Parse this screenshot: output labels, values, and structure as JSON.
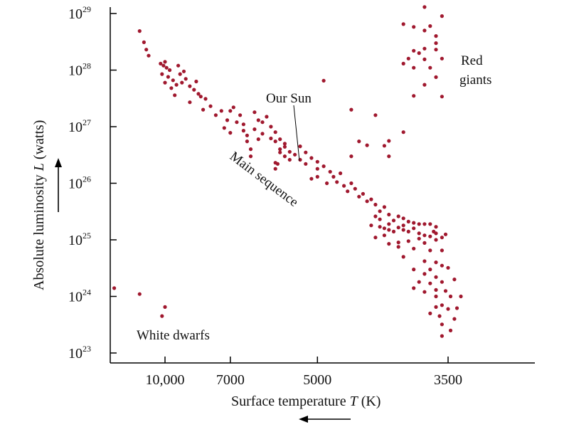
{
  "chart_data": {
    "type": "scatter",
    "title": "",
    "xlabel_prefix": "Surface temperature ",
    "xlabel_var": "T",
    "xlabel_suffix": " (K)",
    "ylabel_prefix": "Absolute luminosity ",
    "ylabel_var": "L",
    "ylabel_suffix": " (watts)",
    "x_scale": "reciprocal",
    "x_direction": "decreasing to the right",
    "y_scale": "log",
    "x_ticks": [
      {
        "value": 10000,
        "label": "10,000"
      },
      {
        "value": 7000,
        "label": "7000"
      },
      {
        "value": 5000,
        "label": "5000"
      },
      {
        "value": 3500,
        "label": "3500"
      }
    ],
    "y_ticks": [
      {
        "exp": 29,
        "base": "10",
        "sup": "29"
      },
      {
        "exp": 28,
        "base": "10",
        "sup": "28"
      },
      {
        "exp": 27,
        "base": "10",
        "sup": "27"
      },
      {
        "exp": 26,
        "base": "10",
        "sup": "26"
      },
      {
        "exp": 25,
        "base": "10",
        "sup": "25"
      },
      {
        "exp": 24,
        "base": "10",
        "sup": "24"
      },
      {
        "exp": 23,
        "base": "10",
        "sup": "23"
      }
    ],
    "ylim": [
      "1e23",
      "1e29"
    ],
    "grid": false,
    "legend": "none",
    "point_color": "#a0182e",
    "annotations": {
      "sun": "Our Sun",
      "main_sequence": "Main sequence",
      "red_giants_1": "Red",
      "red_giants_2": "giants",
      "white_dwarfs": "White dwarfs"
    },
    "points": [
      [
        12000,
        4.9e+28
      ],
      [
        11600,
        3.1e+28
      ],
      [
        11400,
        2.3e+28
      ],
      [
        11200,
        1.8e+28
      ],
      [
        10300,
        1.3e+28
      ],
      [
        10100,
        1.2e+28
      ],
      [
        9900,
        1.1e+28
      ],
      [
        10000,
        1.4e+28
      ],
      [
        9700,
        1e+28
      ],
      [
        10200,
        8.5e+27
      ],
      [
        9800,
        7.6e+27
      ],
      [
        9500,
        6.6e+27
      ],
      [
        9300,
        5.5e+27
      ],
      [
        9000,
        6e+27
      ],
      [
        9600,
        4.8e+27
      ],
      [
        10000,
        6e+27
      ],
      [
        9200,
        1.2e+28
      ],
      [
        9100,
        8.5e+27
      ],
      [
        8900,
        9.5e+27
      ],
      [
        8800,
        7e+27
      ],
      [
        9400,
        3.6e+27
      ],
      [
        8600,
        5.2e+27
      ],
      [
        8400,
        4.5e+27
      ],
      [
        8200,
        3.8e+27
      ],
      [
        8600,
        2.7e+27
      ],
      [
        8300,
        6.3e+27
      ],
      [
        8100,
        3.4e+27
      ],
      [
        7900,
        3.1e+27
      ],
      [
        7700,
        2.3e+27
      ],
      [
        8000,
        2e+27
      ],
      [
        7500,
        1.6e+27
      ],
      [
        7300,
        1.9e+27
      ],
      [
        7100,
        1.3e+27
      ],
      [
        7000,
        1.9e+27
      ],
      [
        6900,
        2.2e+27
      ],
      [
        6800,
        1.2e+27
      ],
      [
        7200,
        9.5e+26
      ],
      [
        6700,
        1.6e+27
      ],
      [
        6600,
        1.1e+27
      ],
      [
        7000,
        7.8e+26
      ],
      [
        6600,
        8.5e+26
      ],
      [
        6500,
        7e+26
      ],
      [
        6300,
        1.8e+27
      ],
      [
        6200,
        1.3e+27
      ],
      [
        6100,
        1.2e+27
      ],
      [
        6000,
        1.5e+27
      ],
      [
        6300,
        9e+26
      ],
      [
        6100,
        7.5e+26
      ],
      [
        5900,
        1e+27
      ],
      [
        5800,
        8e+26
      ],
      [
        6200,
        6e+26
      ],
      [
        5900,
        6.2e+26
      ],
      [
        5800,
        5.5e+26
      ],
      [
        5700,
        6e+26
      ],
      [
        5600,
        5e+26
      ],
      [
        5600,
        4.4e+26
      ],
      [
        5700,
        4e+26
      ],
      [
        5500,
        3.6e+26
      ],
      [
        5600,
        3e+26
      ],
      [
        5400,
        3.2e+26
      ],
      [
        5500,
        2.6e+26
      ],
      [
        5300,
        4.5e+26
      ],
      [
        5200,
        3.5e+26
      ],
      [
        5300,
        2.6e+26
      ],
      [
        5200,
        2.2e+26
      ],
      [
        5100,
        2.8e+26
      ],
      [
        5000,
        2.4e+26
      ],
      [
        5000,
        1.8e+26
      ],
      [
        4900,
        2e+26
      ],
      [
        4800,
        1.6e+26
      ],
      [
        5800,
        1.8e+26
      ],
      [
        5750,
        2.2e+26
      ],
      [
        5700,
        3.5e+26
      ],
      [
        6400,
        4e+26
      ],
      [
        6400,
        3e+26
      ],
      [
        6500,
        5.5e+26
      ],
      [
        5100,
        1.2e+26
      ],
      [
        5000,
        1.3e+26
      ],
      [
        4850,
        1e+26
      ],
      [
        4750,
        1.3e+26
      ],
      [
        4700,
        1.05e+26
      ],
      [
        4650,
        1.5e+26
      ],
      [
        4600,
        9e+25
      ],
      [
        4550,
        7.2e+25
      ],
      [
        4500,
        1e+26
      ],
      [
        4450,
        8e+25
      ],
      [
        4400,
        5.8e+25
      ],
      [
        4350,
        6.5e+25
      ],
      [
        4300,
        4.8e+25
      ],
      [
        4250,
        5.2e+25
      ],
      [
        4200,
        4.2e+25
      ],
      [
        4150,
        3.2e+25
      ],
      [
        4100,
        3.8e+25
      ],
      [
        4200,
        2.6e+25
      ],
      [
        4150,
        2.3e+25
      ],
      [
        4050,
        2.8e+25
      ],
      [
        4000,
        2.2e+25
      ],
      [
        3950,
        2.6e+25
      ],
      [
        3900,
        2.4e+25
      ],
      [
        3850,
        2.1e+25
      ],
      [
        3800,
        2e+25
      ],
      [
        3750,
        1.9e+25
      ],
      [
        3700,
        1.9e+25
      ],
      [
        3650,
        1.9e+25
      ],
      [
        3600,
        1.7e+25
      ],
      [
        3800,
        1.6e+25
      ],
      [
        3900,
        1.5e+25
      ],
      [
        4000,
        1.4e+25
      ],
      [
        4100,
        1.2e+25
      ],
      [
        4200,
        1.1e+25
      ],
      [
        4250,
        1.8e+25
      ],
      [
        4150,
        1.7e+25
      ],
      [
        4050,
        1.9e+25
      ],
      [
        3950,
        1.65e+25
      ],
      [
        3850,
        1.4e+25
      ],
      [
        3750,
        1.3e+25
      ],
      [
        3700,
        1.2e+25
      ],
      [
        3650,
        1.15e+25
      ],
      [
        3600,
        1e+25
      ],
      [
        3550,
        1.1e+25
      ],
      [
        3600,
        1.3e+25
      ],
      [
        3750,
        1.05e+25
      ],
      [
        3850,
        9.5e+24
      ],
      [
        3950,
        9e+24
      ],
      [
        4050,
        8.5e+24
      ],
      [
        3700,
        8.8e+24
      ],
      [
        3800,
        7e+24
      ],
      [
        3650,
        6.5e+24
      ],
      [
        3550,
        6.5e+24
      ],
      [
        3950,
        7.5e+24
      ],
      [
        3900,
        1.8e+25
      ],
      [
        4050,
        1.5e+25
      ],
      [
        4100,
        1.6e+25
      ],
      [
        3620,
        1.4e+25
      ],
      [
        3520,
        1.25e+25
      ],
      [
        3900,
        5e+24
      ],
      [
        3700,
        4.2e+24
      ],
      [
        3600,
        4e+24
      ],
      [
        3550,
        3.5e+24
      ],
      [
        3500,
        3.2e+24
      ],
      [
        3800,
        3e+24
      ],
      [
        3650,
        3e+24
      ],
      [
        3700,
        2.5e+24
      ],
      [
        3600,
        2.2e+24
      ],
      [
        3450,
        2e+24
      ],
      [
        3750,
        1.8e+24
      ],
      [
        3650,
        1.7e+24
      ],
      [
        3550,
        1.8e+24
      ],
      [
        3600,
        1.3e+24
      ],
      [
        3520,
        1.25e+24
      ],
      [
        3480,
        1e+24
      ],
      [
        3600,
        1e+24
      ],
      [
        3700,
        1.2e+24
      ],
      [
        3800,
        1.4e+24
      ],
      [
        3550,
        7e+23
      ],
      [
        3600,
        6.5e+23
      ],
      [
        3500,
        6e+23
      ],
      [
        3430,
        6.2e+23
      ],
      [
        3650,
        5e+23
      ],
      [
        3570,
        4.5e+23
      ],
      [
        3450,
        4e+23
      ],
      [
        3550,
        3.2e+23
      ],
      [
        3480,
        2.5e+23
      ],
      [
        3550,
        2e+23
      ],
      [
        3400,
        1e+24
      ],
      [
        3700,
        1.3e+29
      ],
      [
        3900,
        6.5e+28
      ],
      [
        3800,
        5.8e+28
      ],
      [
        3700,
        5e+28
      ],
      [
        3650,
        6e+28
      ],
      [
        3600,
        4e+28
      ],
      [
        3550,
        9e+28
      ],
      [
        3600,
        3e+28
      ],
      [
        3700,
        2.4e+28
      ],
      [
        3750,
        2e+28
      ],
      [
        3800,
        2.2e+28
      ],
      [
        3600,
        2.3e+28
      ],
      [
        3850,
        1.6e+28
      ],
      [
        3700,
        1.55e+28
      ],
      [
        3550,
        1.6e+28
      ],
      [
        3900,
        1.3e+28
      ],
      [
        3800,
        1.1e+28
      ],
      [
        3650,
        1.1e+28
      ],
      [
        3600,
        7.5e+27
      ],
      [
        3700,
        5.5e+27
      ],
      [
        3800,
        3.5e+27
      ],
      [
        3550,
        3.4e+27
      ],
      [
        4900,
        6.5e+27
      ],
      [
        4500,
        2e+27
      ],
      [
        4200,
        1.6e+27
      ],
      [
        4400,
        5.5e+26
      ],
      [
        3900,
        8e+26
      ],
      [
        4050,
        5.6e+26
      ],
      [
        4100,
        4.6e+26
      ],
      [
        4300,
        4.7e+26
      ],
      [
        4050,
        3e+26
      ],
      [
        4500,
        3e+26
      ],
      [
        15000,
        1.4e+24
      ],
      [
        12000,
        1.1e+24
      ],
      [
        10000,
        6.5e+23
      ],
      [
        10200,
        4.5e+23
      ]
    ],
    "sun_point": [
      5800,
      2.3e+26
    ]
  }
}
